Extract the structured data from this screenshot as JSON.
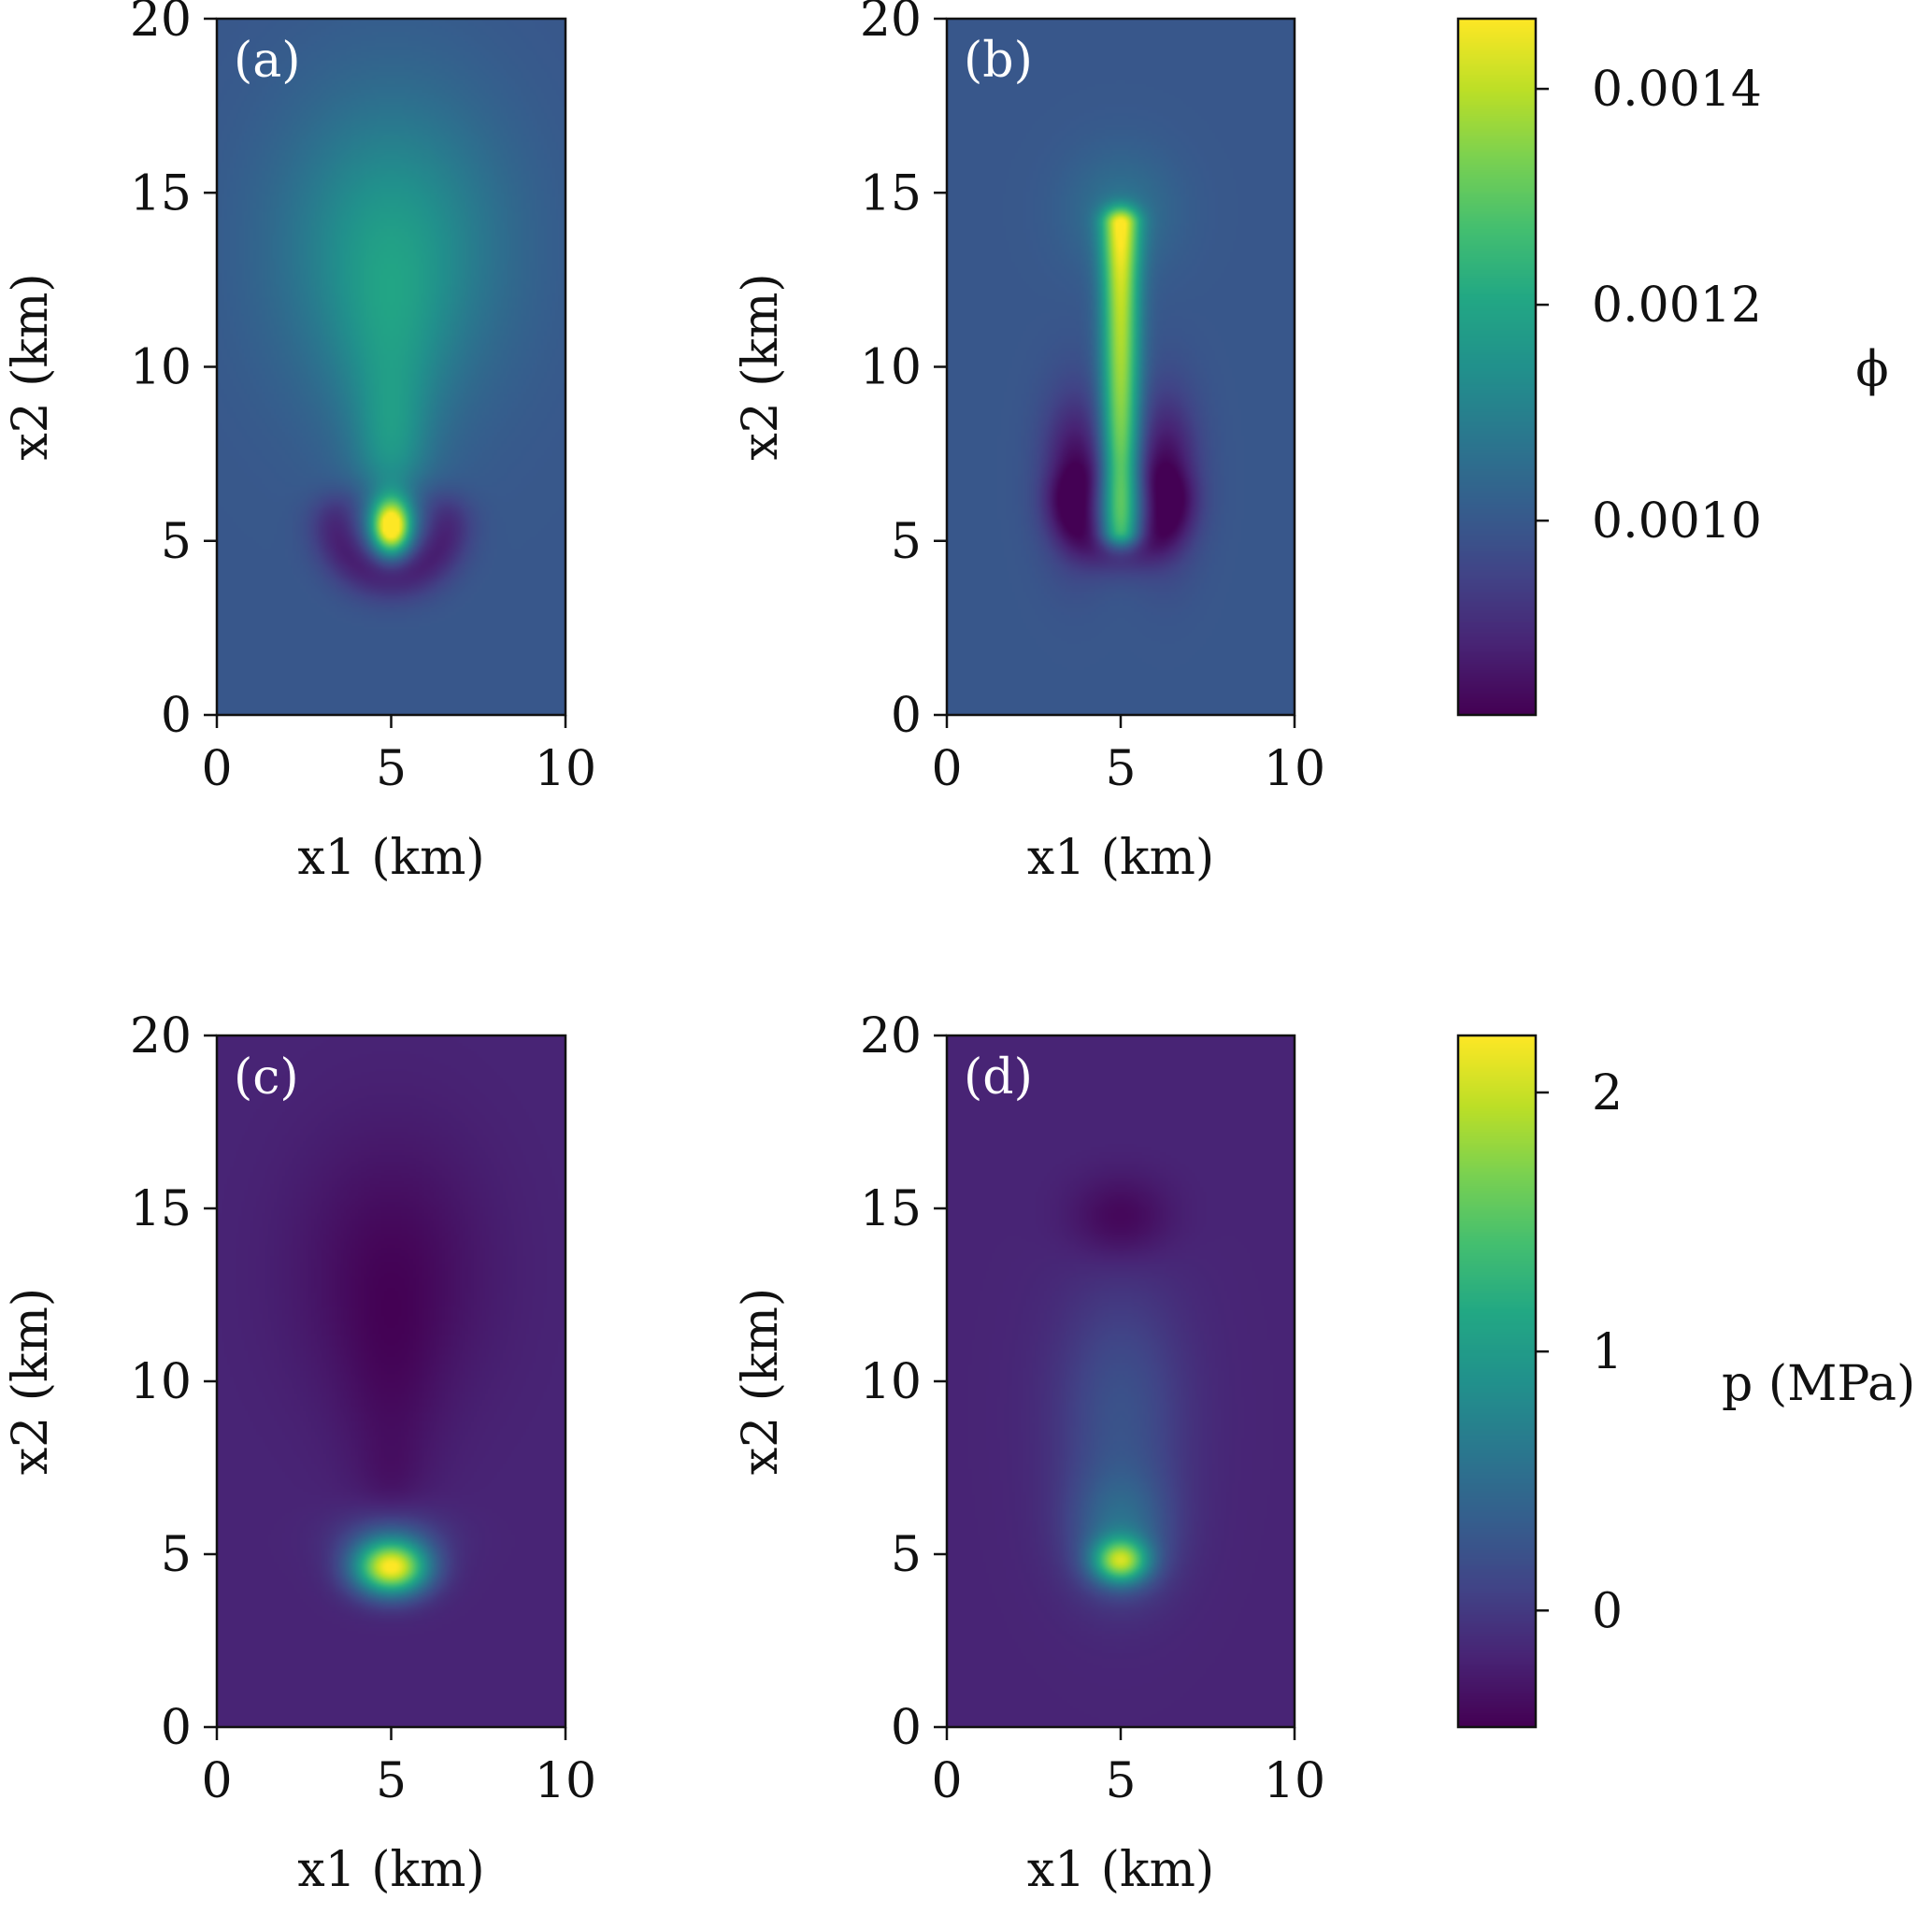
{
  "colormap": "viridis",
  "chart_data": [
    {
      "type": "heatmap",
      "panel_label": "(a)",
      "xlabel": "x1 (km)",
      "ylabel": "x2 (km)",
      "xlim": [
        0,
        10
      ],
      "ylim": [
        0,
        20
      ],
      "xticks": [
        "0",
        "5",
        "10"
      ],
      "yticks": [
        "0",
        "5",
        "10",
        "15",
        "20"
      ],
      "colorbar_group": "phi",
      "background": 0.000995,
      "features": [
        {
          "kind": "gauss",
          "x": 5.0,
          "y": 13.5,
          "sx": 2.2,
          "sy": 3.0,
          "a": 0.000165
        },
        {
          "kind": "gauss",
          "x": 5.0,
          "y": 10.0,
          "sx": 1.1,
          "sy": 2.4,
          "a": 8e-05
        },
        {
          "kind": "gauss",
          "x": 5.0,
          "y": 7.5,
          "sx": 0.7,
          "sy": 1.5,
          "a": 0.0001
        },
        {
          "kind": "gauss",
          "x": 5.0,
          "y": 5.4,
          "sx": 0.38,
          "sy": 0.55,
          "a": 0.00052
        },
        {
          "kind": "ring",
          "x": 5.0,
          "y": 5.6,
          "r": 1.55,
          "w": 0.55,
          "a": -0.00013,
          "lower": true
        }
      ]
    },
    {
      "type": "heatmap",
      "panel_label": "(b)",
      "xlabel": "x1 (km)",
      "ylabel": "x2 (km)",
      "xlim": [
        0,
        10
      ],
      "ylim": [
        0,
        20
      ],
      "xticks": [
        "0",
        "5",
        "10"
      ],
      "yticks": [
        "0",
        "5",
        "10",
        "15",
        "20"
      ],
      "colorbar_group": "phi",
      "background": 0.000995,
      "features": [
        {
          "kind": "gauss",
          "x": 5.0,
          "y": 14.5,
          "sx": 1.1,
          "sy": 1.2,
          "a": 7e-05
        },
        {
          "kind": "stripe",
          "x": 5.0,
          "y0": 5.3,
          "y1": 14.1,
          "sx": 0.38,
          "sy": 0.35,
          "a_bottom": 0.00034,
          "a_top": 0.00043
        },
        {
          "kind": "gauss",
          "x": 3.7,
          "y": 6.9,
          "sx": 0.65,
          "sy": 1.6,
          "a": -0.00016
        },
        {
          "kind": "gauss",
          "x": 6.3,
          "y": 6.9,
          "sx": 0.65,
          "sy": 1.6,
          "a": -0.00016
        },
        {
          "kind": "ring",
          "x": 5.0,
          "y": 6.2,
          "r": 1.5,
          "w": 0.5,
          "a": -9e-05,
          "lower": true
        }
      ]
    },
    {
      "type": "heatmap",
      "panel_label": "(c)",
      "xlabel": "x1 (km)",
      "ylabel": "x2 (km)",
      "xlim": [
        0,
        10
      ],
      "ylim": [
        0,
        20
      ],
      "xticks": [
        "0",
        "5",
        "10"
      ],
      "yticks": [
        "0",
        "5",
        "10",
        "15",
        "20"
      ],
      "colorbar_group": "p",
      "background": -0.18,
      "features": [
        {
          "kind": "gauss",
          "x": 5.0,
          "y": 13.2,
          "sx": 1.9,
          "sy": 2.7,
          "a": -0.22
        },
        {
          "kind": "gauss",
          "x": 5.0,
          "y": 9.5,
          "sx": 1.0,
          "sy": 2.4,
          "a": -0.12
        },
        {
          "kind": "gauss",
          "x": 5.0,
          "y": 7.2,
          "sx": 0.6,
          "sy": 0.9,
          "a": -0.06
        },
        {
          "kind": "gauss",
          "x": 5.0,
          "y": 4.6,
          "sx": 0.75,
          "sy": 0.55,
          "a": 2.35
        },
        {
          "kind": "gauss",
          "x": 5.0,
          "y": 5.5,
          "sx": 1.1,
          "sy": 0.6,
          "a": 0.35
        }
      ]
    },
    {
      "type": "heatmap",
      "panel_label": "(d)",
      "xlabel": "x1 (km)",
      "ylabel": "x2 (km)",
      "xlim": [
        0,
        10
      ],
      "ylim": [
        0,
        20
      ],
      "xticks": [
        "0",
        "5",
        "10"
      ],
      "yticks": [
        "0",
        "5",
        "10",
        "15",
        "20"
      ],
      "colorbar_group": "p",
      "background": -0.18,
      "features": [
        {
          "kind": "gauss",
          "x": 5.0,
          "y": 14.7,
          "sx": 1.0,
          "sy": 0.85,
          "a": -0.25
        },
        {
          "kind": "gauss",
          "x": 5.0,
          "y": 9.0,
          "sx": 1.3,
          "sy": 2.6,
          "a": 0.4
        },
        {
          "kind": "gauss",
          "x": 5.0,
          "y": 5.6,
          "sx": 1.0,
          "sy": 1.2,
          "a": 0.55
        },
        {
          "kind": "gauss",
          "x": 5.0,
          "y": 4.8,
          "sx": 0.55,
          "sy": 0.45,
          "a": 1.7
        }
      ]
    }
  ],
  "colorbars": [
    {
      "group": "phi",
      "label": "ϕ",
      "vmin": 0.00082,
      "vmax": 0.001465,
      "ticks": [
        {
          "value": 0.001,
          "label": "0.0010"
        },
        {
          "value": 0.0012,
          "label": "0.0012"
        },
        {
          "value": 0.0014,
          "label": "0.0014"
        }
      ]
    },
    {
      "group": "p",
      "label": "p (MPa)",
      "vmin": -0.45,
      "vmax": 2.22,
      "ticks": [
        {
          "value": 0,
          "label": "0"
        },
        {
          "value": 1,
          "label": "1"
        },
        {
          "value": 2,
          "label": "2"
        }
      ]
    }
  ]
}
